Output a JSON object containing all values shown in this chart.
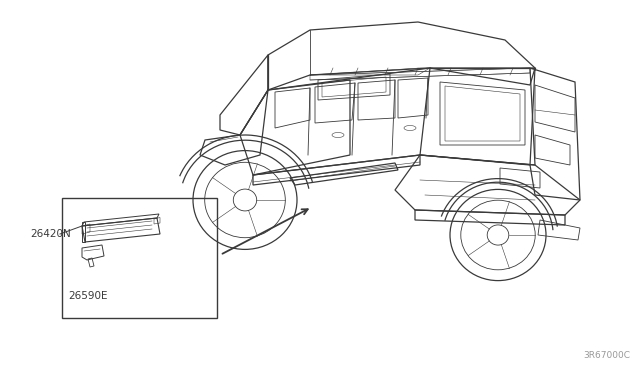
{
  "bg_color": "#ffffff",
  "part_label_1": "26420N",
  "part_label_2": "26590E",
  "ref_code": "3R67000C",
  "line_color": "#3a3a3a",
  "label_color": "#3a3a3a",
  "ref_color": "#999999",
  "lw_main": 0.9,
  "lw_detail": 0.6,
  "lw_thin": 0.4
}
